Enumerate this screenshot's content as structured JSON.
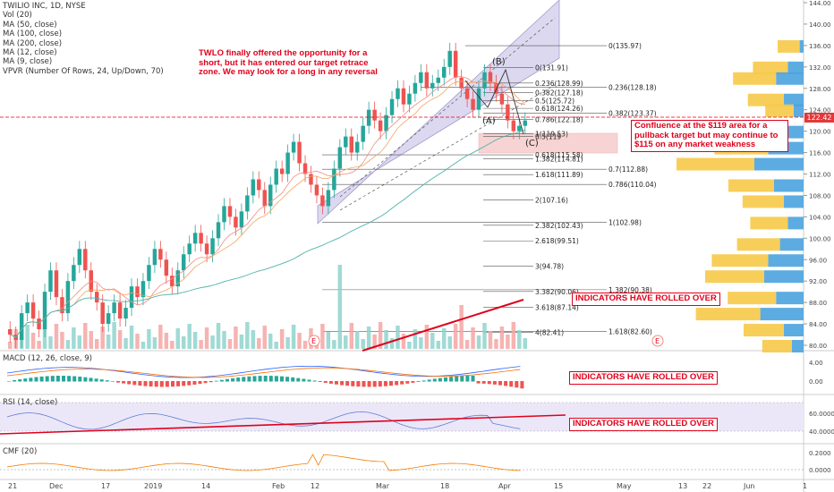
{
  "legend": {
    "title": "TWILIO INC, 1D, NYSE",
    "items": [
      "Vol (20)",
      "MA (50, close)",
      "MA (100, close)",
      "MA (200, close)",
      "MA (12, close)",
      "MA (9, close)",
      "VPVR (Number Of Rows, 24, Up/Down, 70)"
    ]
  },
  "panes": {
    "macd_title": "MACD (12, 26, close, 9)",
    "rsi_title": "RSI (14, close)",
    "cmf_title": "CMF (20)"
  },
  "colors": {
    "up": "#26a69a",
    "down": "#ef5350",
    "ma_teal": "#4fb3a9",
    "ma_orange": "#f4a460",
    "channel": "#b7b0dd",
    "vpvr_up": "#4aa3df",
    "vpvr_down": "#f7c948",
    "alert": "#e0001b"
  },
  "annotations": {
    "short_note": "TWLO finally offered the opportunity for a short, but it has entered our target retrace zone. We may look for a long in any reversal",
    "confluence_note": "Confluence at the $119 area for a pullback target but may continue to $115 on any market weakness",
    "rolled_main": "INDICATORS HAVE ROLLED OVER",
    "rolled_macd": "INDICATORS HAVE ROLLED OVER",
    "rolled_rsi": "INDICATORS HAVE ROLLED OVER",
    "wave_a": "(A)",
    "wave_b": "(B)",
    "wave_c": "(C)",
    "earnings_1": "E",
    "earnings_2": "E",
    "current_price": "122.42"
  },
  "fib_levels": [
    {
      "label": "0(135.97)"
    },
    {
      "label": "0(131.91)"
    },
    {
      "label": "0.236(128.99)"
    },
    {
      "label": "0.236(128.18)"
    },
    {
      "label": "0.382(127.18)"
    },
    {
      "label": "0.5(125.72)"
    },
    {
      "label": "0.618(124.26)"
    },
    {
      "label": "0.382(123.37)"
    },
    {
      "label": "0.786(122.18)"
    },
    {
      "label": "0.5(119"
    },
    {
      "label": "1(119.53)"
    },
    {
      "label": "0.618(115.58)"
    },
    {
      "label": "1.382(114.81)"
    },
    {
      "label": "0.7(112.88)"
    },
    {
      "label": "1.618(111.89)"
    },
    {
      "label": "0.786(110.04)"
    },
    {
      "label": "2(107.16)"
    },
    {
      "label": "1(102.98)"
    },
    {
      "label": "2.382(102.43)"
    },
    {
      "label": "2.618(99.51)"
    },
    {
      "label": "3(94.78)"
    },
    {
      "label": "3.382(90.06)"
    },
    {
      "label": "1.382(90.38)"
    },
    {
      "label": "3.618(87.14)"
    },
    {
      "label": "4(82.41)"
    },
    {
      "label": "1.618(82.60)"
    }
  ],
  "chart_data": [
    {
      "type": "candlestick",
      "title": "TWILIO INC, 1D, NYSE",
      "ylim": [
        78,
        144
      ],
      "price_ticks": [
        "144.00",
        "140.00",
        "136.00",
        "132.00",
        "128.00",
        "124.00",
        "120.00",
        "116.00",
        "112.00",
        "108.00",
        "104.00",
        "100.00",
        "96.00",
        "92.00",
        "88.00",
        "84.00",
        "80.00"
      ],
      "x_ticks": [
        "21",
        "Dec",
        "17",
        "2019",
        "14",
        "Feb",
        "12",
        "Mar",
        "18",
        "Apr",
        "15",
        "May",
        "13",
        "22",
        "Jun",
        "1"
      ],
      "close_path": [
        82,
        81,
        86,
        88,
        85,
        83,
        90,
        94,
        89,
        86,
        92,
        95,
        98,
        94,
        90,
        88,
        84,
        86,
        88,
        85,
        87,
        91,
        89,
        92,
        95,
        98,
        96,
        93,
        91,
        94,
        97,
        99,
        101,
        99,
        97,
        100,
        103,
        106,
        104,
        102,
        105,
        108,
        111,
        109,
        106,
        110,
        113,
        112,
        116,
        118,
        114,
        112,
        110,
        108,
        106,
        109,
        113,
        117,
        119,
        116,
        118,
        121,
        124,
        122,
        120,
        123,
        126,
        128,
        125,
        127,
        129,
        131,
        128,
        129,
        130,
        132,
        135,
        130,
        128,
        126,
        124,
        128,
        131,
        129,
        127,
        125,
        122,
        120,
        121,
        122
      ]
    },
    {
      "type": "bar",
      "title": "Vol (20)"
    },
    {
      "type": "line",
      "title": "MACD (12, 26, close, 9)",
      "y_ticks": [
        "4.00",
        "0.00"
      ]
    },
    {
      "type": "line",
      "title": "RSI (14, close)",
      "y_ticks": [
        "60.0000",
        "40.0000"
      ]
    },
    {
      "type": "line",
      "title": "CMF (20)",
      "y_ticks": [
        "0.2000",
        "0.0000"
      ]
    }
  ]
}
